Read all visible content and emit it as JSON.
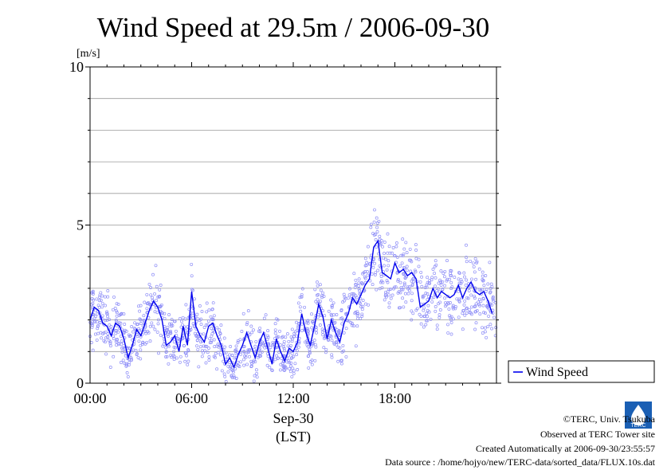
{
  "chart_data": {
    "type": "line",
    "title": "Wind Speed at 29.5m / 2006-09-30",
    "ylabel": "[m/s]",
    "xlabel": "(LST)",
    "date_label": "Sep-30",
    "xlim": [
      0,
      24
    ],
    "ylim": [
      0,
      10
    ],
    "yticks": [
      0,
      5,
      10
    ],
    "ytick_labels": [
      "0",
      "5",
      "10"
    ],
    "xticks": [
      0,
      6,
      12,
      18
    ],
    "xtick_labels": [
      "00:00",
      "06:00",
      "12:00",
      "18:00"
    ],
    "grid": true,
    "legend_position": "bottom-right outside",
    "series_color": "#0000ee",
    "scatter_color": "#8f8ff7",
    "series": [
      {
        "name": "Wind Speed",
        "x": [
          0.0,
          0.25,
          0.5,
          0.75,
          1.0,
          1.25,
          1.5,
          1.75,
          2.0,
          2.25,
          2.5,
          2.75,
          3.0,
          3.25,
          3.5,
          3.75,
          4.0,
          4.25,
          4.5,
          4.75,
          5.0,
          5.25,
          5.5,
          5.75,
          6.0,
          6.25,
          6.5,
          6.75,
          7.0,
          7.25,
          7.5,
          7.75,
          8.0,
          8.25,
          8.5,
          8.75,
          9.0,
          9.25,
          9.5,
          9.75,
          10.0,
          10.25,
          10.5,
          10.75,
          11.0,
          11.25,
          11.5,
          11.75,
          12.0,
          12.25,
          12.5,
          12.75,
          13.0,
          13.25,
          13.5,
          13.75,
          14.0,
          14.25,
          14.5,
          14.75,
          15.0,
          15.25,
          15.5,
          15.75,
          16.0,
          16.25,
          16.5,
          16.75,
          17.0,
          17.25,
          17.5,
          17.75,
          18.0,
          18.25,
          18.5,
          18.75,
          19.0,
          19.25,
          19.5,
          19.75,
          20.0,
          20.25,
          20.5,
          20.75,
          21.0,
          21.25,
          21.5,
          21.75,
          22.0,
          22.25,
          22.5,
          22.75,
          23.0,
          23.25,
          23.5,
          23.75
        ],
        "y": [
          2.0,
          2.4,
          2.3,
          1.9,
          1.8,
          1.5,
          1.9,
          1.8,
          1.4,
          0.8,
          1.2,
          1.7,
          1.5,
          1.9,
          2.3,
          2.6,
          2.4,
          2.0,
          1.2,
          1.3,
          1.5,
          1.0,
          1.8,
          1.2,
          2.9,
          1.8,
          1.5,
          1.3,
          1.8,
          1.9,
          1.5,
          1.2,
          0.6,
          0.8,
          0.5,
          0.9,
          1.2,
          1.6,
          1.2,
          0.8,
          1.3,
          1.6,
          1.1,
          0.6,
          1.4,
          1.0,
          0.7,
          1.1,
          1.0,
          1.3,
          2.2,
          1.6,
          1.2,
          1.8,
          2.5,
          2.1,
          1.4,
          2.0,
          1.6,
          1.3,
          1.9,
          2.2,
          2.7,
          2.5,
          2.8,
          3.1,
          3.3,
          4.3,
          4.5,
          3.5,
          3.4,
          3.3,
          3.8,
          3.5,
          3.6,
          3.4,
          3.5,
          3.3,
          2.4,
          2.5,
          2.6,
          3.0,
          2.7,
          2.9,
          2.8,
          2.7,
          2.8,
          3.1,
          2.7,
          3.0,
          3.2,
          2.9,
          2.8,
          2.9,
          2.6,
          2.2
        ]
      }
    ]
  },
  "credits": {
    "copyright": "©TERC, Univ. Tsukuba",
    "observed": "Observed at TERC Tower site",
    "created": "Created Automatically at 2006-09-30/23:55:57",
    "source": "Data source : /home/hojyo/new/TERC-data/sorted_data/FLUX.10s.dat",
    "logo_text": "TERC"
  }
}
